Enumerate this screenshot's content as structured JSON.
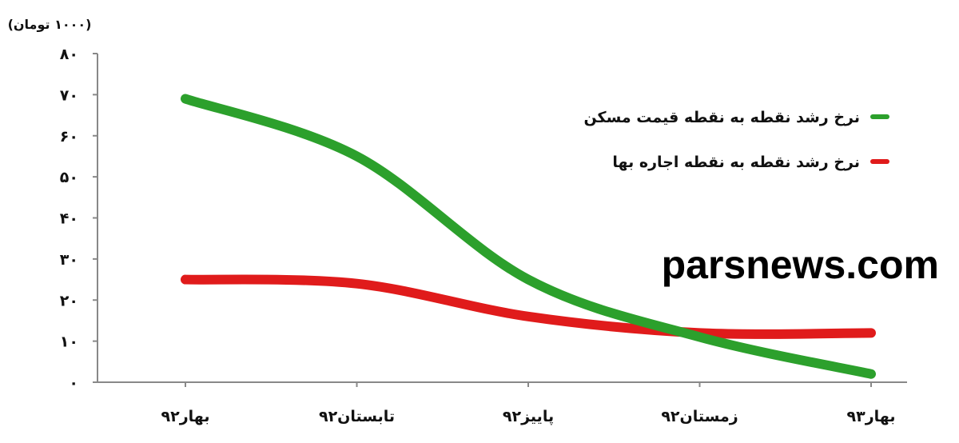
{
  "chart_data": {
    "type": "line",
    "unit_label": "(۱۰۰۰ تومان)",
    "categories": [
      "بهار۹۲",
      "تابستان۹۲",
      "پاییز۹۲",
      "زمستان۹۲",
      "بهار۹۳"
    ],
    "y_ticks": [
      {
        "value": 0,
        "label": "۰"
      },
      {
        "value": 10,
        "label": "۱۰"
      },
      {
        "value": 20,
        "label": "۲۰"
      },
      {
        "value": 30,
        "label": "۳۰"
      },
      {
        "value": 40,
        "label": "۴۰"
      },
      {
        "value": 50,
        "label": "۵۰"
      },
      {
        "value": 60,
        "label": "۶۰"
      },
      {
        "value": 70,
        "label": "۷۰"
      },
      {
        "value": 80,
        "label": "۸۰"
      }
    ],
    "ylim": [
      0,
      80
    ],
    "grid": false,
    "legend_position": "top-right",
    "series": [
      {
        "name": "نرخ رشد نقطه به نقطه قیمت مسکن",
        "color": "#2ca02c",
        "values": [
          69,
          55,
          25,
          11,
          2
        ]
      },
      {
        "name": "نرخ رشد نقطه به نقطه اجاره بها",
        "color": "#e01b1b",
        "values": [
          25,
          24,
          16,
          12,
          12
        ]
      }
    ]
  },
  "watermark": "parsnews.com"
}
